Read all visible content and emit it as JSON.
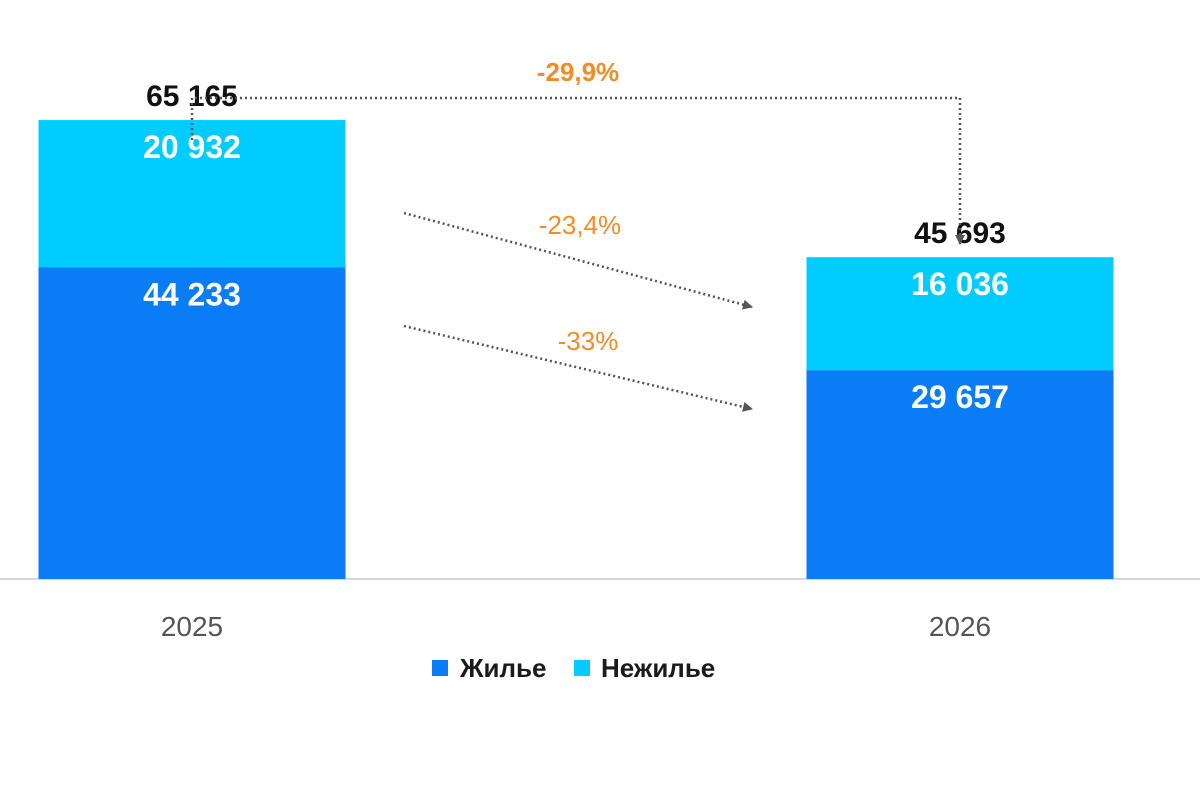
{
  "chart_data": {
    "type": "bar",
    "stacked": true,
    "categories": [
      "2025",
      "2026"
    ],
    "series": [
      {
        "name": "Жилье",
        "values": [
          44233,
          29657
        ],
        "labels": [
          "44 233",
          "29 657"
        ],
        "color": "#0a7cf5"
      },
      {
        "name": "Нежилье",
        "values": [
          20932,
          16036
        ],
        "labels": [
          "20 932",
          "16 036"
        ],
        "color": "#00ccff"
      }
    ],
    "totals": {
      "values": [
        65165,
        45693
      ],
      "labels": [
        "65 165",
        "45 693"
      ]
    },
    "changes": {
      "total": "-29,9%",
      "series_2": "-23,4%",
      "series_1": "-33%"
    },
    "ylim": [
      0,
      70000
    ],
    "grid": false,
    "legend": {
      "placement": "bottom-center",
      "items": [
        "Жилье",
        "Нежилье"
      ]
    },
    "colors": {
      "change_text": "#f28c28",
      "connector": "#555555",
      "axis": "#d9d9d9"
    }
  }
}
